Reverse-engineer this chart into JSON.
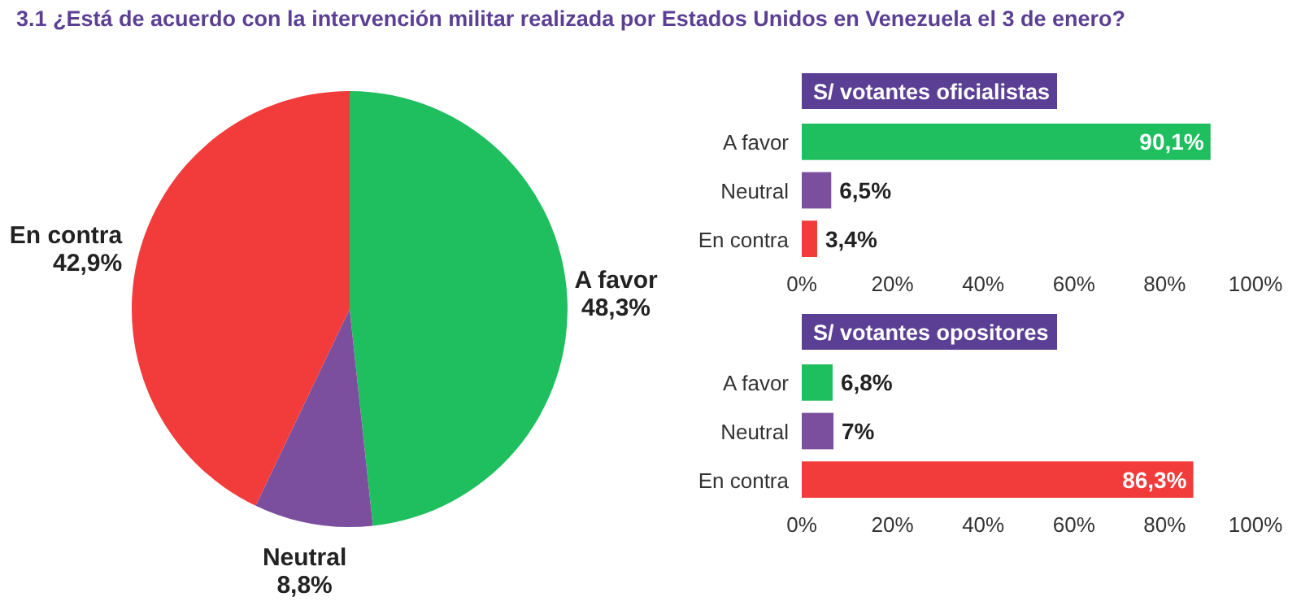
{
  "chart_data": [
    {
      "type": "pie",
      "title": "3.1 ¿Está de acuerdo con la intervención militar realizada por Estados Unidos en Venezuela el 3 de enero?",
      "categories": [
        "A favor",
        "Neutral",
        "En contra"
      ],
      "values": [
        48.3,
        8.8,
        42.9
      ],
      "colors": [
        "#1fbf5f",
        "#7b4f9e",
        "#f23b3b"
      ],
      "value_labels": [
        "48,3%",
        "8,8%",
        "42,9%"
      ]
    },
    {
      "type": "bar",
      "orientation": "horizontal",
      "title": "S/ votantes oficialistas",
      "categories": [
        "A favor",
        "Neutral",
        "En contra"
      ],
      "values": [
        90.1,
        6.5,
        3.4
      ],
      "colors": [
        "#1fbf5f",
        "#7b4f9e",
        "#f23b3b"
      ],
      "value_labels": [
        "90,1%",
        "6,5%",
        "3,4%"
      ],
      "xlim": [
        0,
        100
      ],
      "xticks": [
        {
          "value": 0,
          "label": "0%"
        },
        {
          "value": 20,
          "label": "20%"
        },
        {
          "value": 40,
          "label": "40%"
        },
        {
          "value": 60,
          "label": "60%"
        },
        {
          "value": 80,
          "label": "80%"
        },
        {
          "value": 100,
          "label": "100%"
        }
      ]
    },
    {
      "type": "bar",
      "orientation": "horizontal",
      "title": "S/ votantes opositores",
      "categories": [
        "A favor",
        "Neutral",
        "En contra"
      ],
      "values": [
        6.8,
        7,
        86.3
      ],
      "colors": [
        "#1fbf5f",
        "#7b4f9e",
        "#f23b3b"
      ],
      "value_labels": [
        "6,8%",
        "7%",
        "86,3%"
      ],
      "xlim": [
        0,
        100
      ],
      "xticks": [
        {
          "value": 0,
          "label": "0%"
        },
        {
          "value": 20,
          "label": "20%"
        },
        {
          "value": 40,
          "label": "40%"
        },
        {
          "value": 60,
          "label": "60%"
        },
        {
          "value": 80,
          "label": "80%"
        },
        {
          "value": 100,
          "label": "100%"
        }
      ]
    }
  ]
}
